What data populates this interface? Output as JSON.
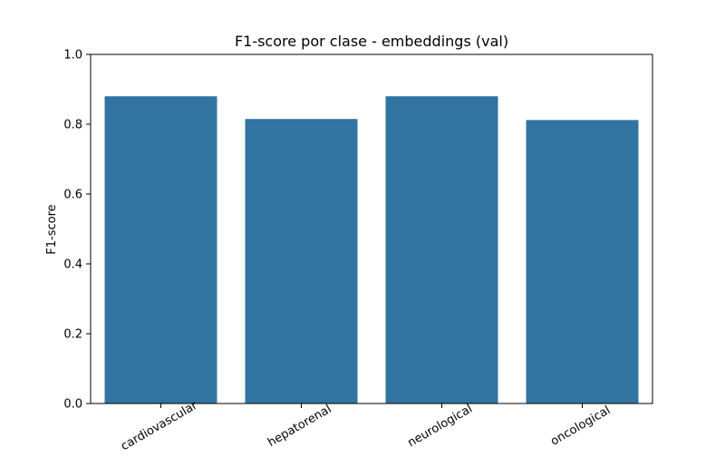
{
  "chart_data": {
    "type": "bar",
    "title": "F1-score por clase - embeddings (val)",
    "xlabel": "",
    "ylabel": "F1-score",
    "categories": [
      "cardiovascular",
      "hepatorenal",
      "neurological",
      "oncological"
    ],
    "values": [
      0.88,
      0.815,
      0.88,
      0.812
    ],
    "ylim": [
      0,
      1.0
    ],
    "yticks": [
      "0.0",
      "0.2",
      "0.4",
      "0.6",
      "0.8",
      "1.0"
    ],
    "grid": false,
    "legend": "none",
    "colors": {
      "bar": "#3274a1",
      "axis": "#000000"
    }
  }
}
